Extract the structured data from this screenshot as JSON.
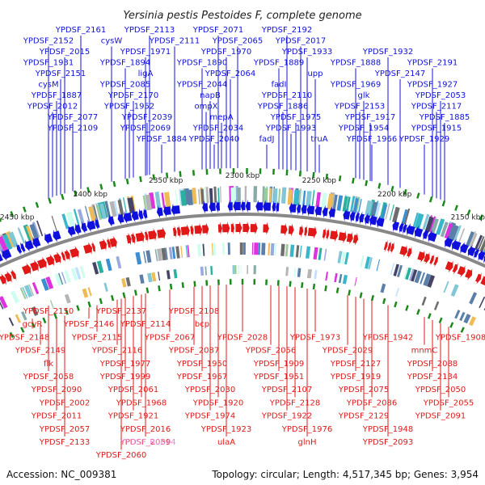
{
  "title": "Yersinia pestis Pestoides F, complete genome",
  "accession": "Accession: NC_009381",
  "summary": "Topology: circular; Length: 4,517,345 bp; Genes: 3,954",
  "colors": {
    "plus_strand": "#1010dd",
    "minus_strand": "#e01818",
    "rna_label": "#ee88dd",
    "ruler": "#888888",
    "tick": "#1a8a1a"
  },
  "scale_ticks": [
    "2450 kbp",
    "2400 kbp",
    "2350 kbp",
    "2300 kbp",
    "2250 kbp",
    "2200 kbp",
    "2150 kbp"
  ],
  "top_labels": [
    "YPDSF_2161",
    "YPDSF_2113",
    "YPDSF_2071",
    "YPDSF_2192",
    "YPDSF_2152",
    "cysW",
    "YPDSF_2111",
    "YPDSF_2065",
    "YPDSF_2017",
    "YPDSF_2015",
    "YPDSF_1971",
    "YPDSF_1970",
    "YPDSF_1933",
    "YPDSF_1932",
    "YPDSF_1931",
    "YPDSF_1894",
    "YPDSF_1890",
    "YPDSF_1889",
    "YPDSF_1888",
    "YPDSF_2191",
    "YPDSF_2151",
    "ligA",
    "YPDSF_2064",
    "upp",
    "YPDSF_2147",
    "cysM",
    "YPDSF_2085",
    "YPDSF_2044",
    "fadI",
    "YPDSF_1969",
    "YPDSF_1927",
    "YPDSF_1887",
    "YPDSF_2170",
    "napB",
    "YPDSF_2110",
    "glk",
    "YPDSF_2053",
    "YPDSF_2012",
    "YPDSF_1952",
    "ompX",
    "YPDSF_1886",
    "YPDSF_2153",
    "YPDSF_2117",
    "YPDSF_2077",
    "YPDSF_2039",
    "mepA",
    "YPDSF_1975",
    "YPDSF_1917",
    "YPDSF_1885",
    "YPDSF_2109",
    "YPDSF_2069",
    "YPDSF_2034",
    "YPDSF_1993",
    "YPDSF_1954",
    "YPDSF_1915",
    "YPDSF_1884",
    "YPDSF_2040",
    "fadJ",
    "truA",
    "YPDSF_1966",
    "YPDSF_1929"
  ],
  "bottom_labels": [
    "YPDSF_2150",
    "YPDSF_2137",
    "YPDSF_2108",
    "gcvR",
    "YPDSF_2146",
    "YPDSF_2114",
    "bcp",
    "YPDSF_2148",
    "YPDSF_2115",
    "YPDSF_2067",
    "YPDSF_2028",
    "YPDSF_1973",
    "YPDSF_1942",
    "YPDSF_1908",
    "YPDSF_2149",
    "YPDSF_2116",
    "YPDSF_2087",
    "YPDSF_2056",
    "YPDSF_2029",
    "mnmC",
    "flk",
    "YPDSF_1977",
    "YPDSF_1950",
    "YPDSF_1909",
    "YPDSF_2127",
    "YPDSF_2088",
    "YPDSF_2058",
    "YPDSF_1999",
    "YPDSF_1967",
    "YPDSF_1951",
    "YPDSF_1919",
    "YPDSF_2134",
    "YPDSF_2090",
    "YPDSF_2061",
    "YPDSF_2030",
    "YPDSF_2107",
    "YPDSF_2075",
    "YPDSF_2050",
    "YPDSF_2002",
    "YPDSF_1968",
    "YPDSF_1920",
    "YPDSF_2128",
    "YPDSF_2086",
    "YPDSF_2055",
    "YPDSF_2011",
    "YPDSF_1921",
    "YPDSF_1974",
    "YPDSF_1922",
    "YPDSF_2129",
    "YPDSF_2091",
    "YPDSF_2057",
    "YPDSF_2016",
    "YPDSF_1923",
    "YPDSF_1976",
    "YPDSF_1948",
    "YPDSF_2133",
    "YPDSF_2059",
    "ulaA",
    "glnH",
    "YPDSF_2093",
    "YPDSF_2060"
  ],
  "rna_labels": [
    "YPDSF_R0044"
  ]
}
